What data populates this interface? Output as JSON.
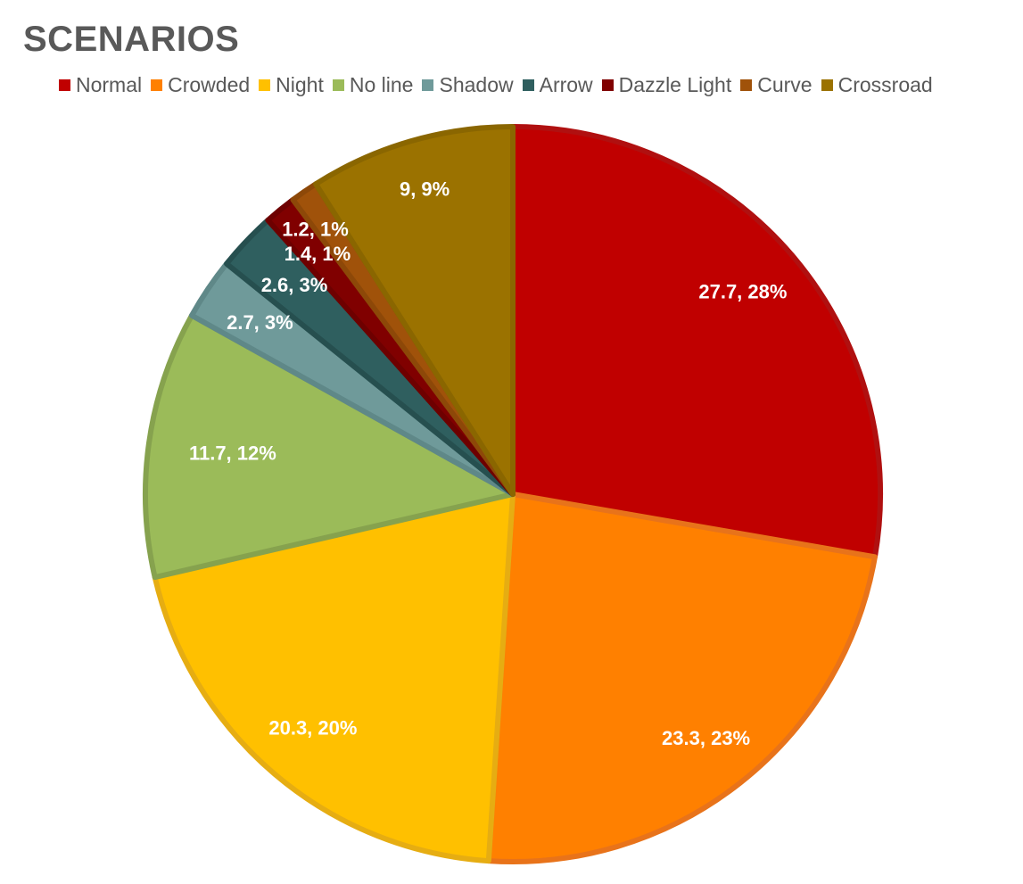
{
  "chart_data": {
    "type": "pie",
    "title": "SCENARIOS",
    "legend_position": "top",
    "slices": [
      {
        "name": "Normal",
        "value": 27.7,
        "label": "27.7, 28%",
        "color": "#c00000",
        "border": "#b01010"
      },
      {
        "name": "Crowded",
        "value": 23.3,
        "label": "23.3, 23%",
        "color": "#ff8000",
        "border": "#e8731a"
      },
      {
        "name": "Night",
        "value": 20.3,
        "label": "20.3, 20%",
        "color": "#ffc000",
        "border": "#e6ad12"
      },
      {
        "name": "No line",
        "value": 11.7,
        "label": "11.7, 12%",
        "color": "#9bbb59",
        "border": "#86a24e"
      },
      {
        "name": "Shadow",
        "value": 2.7,
        "label": "2.7, 3%",
        "color": "#6f9a9a",
        "border": "#5f8888"
      },
      {
        "name": "Arrow",
        "value": 2.6,
        "label": "2.6, 3%",
        "color": "#2f5f5f",
        "border": "#264f4f"
      },
      {
        "name": "Dazzle Light",
        "value": 1.4,
        "label": "1.4, 1%",
        "color": "#800000",
        "border": "#6e0000"
      },
      {
        "name": "Curve",
        "value": 1.2,
        "label": "1.2, 1%",
        "color": "#a0520a",
        "border": "#8d4808"
      },
      {
        "name": "Crossroad",
        "value": 9,
        "label": "9, 9%",
        "color": "#9b7200",
        "border": "#8a6600"
      }
    ]
  }
}
